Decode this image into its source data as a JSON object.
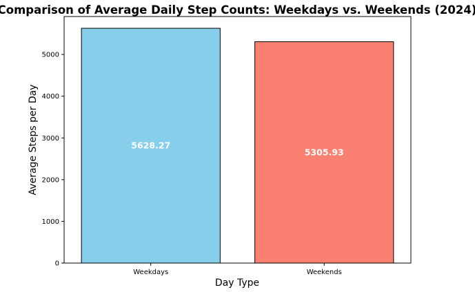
{
  "chart_data": {
    "type": "bar",
    "title": "Comparison of Average Daily Step Counts: Weekdays vs. Weekends (2024)",
    "xlabel": "Day Type",
    "ylabel": "Average Steps per Day",
    "categories": [
      "Weekdays",
      "Weekends"
    ],
    "values": [
      5628.27,
      5305.93
    ],
    "value_labels": [
      "5628.27",
      "5305.93"
    ],
    "colors": [
      "#87ceeb",
      "#fa8072"
    ],
    "edge_color": "#000000",
    "ylim": [
      0,
      5909.68
    ],
    "yticks": [
      0,
      1000,
      2000,
      3000,
      4000,
      5000
    ],
    "ytick_labels": [
      "0",
      "1000",
      "2000",
      "3000",
      "4000",
      "5000"
    ],
    "grid": false,
    "legend": "none"
  }
}
